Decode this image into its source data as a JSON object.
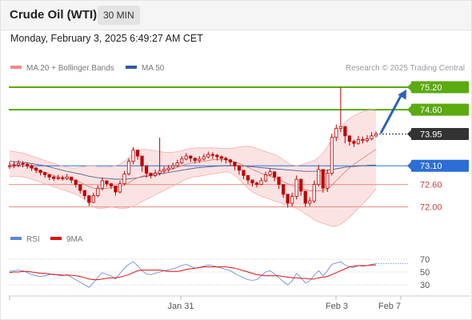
{
  "header": {
    "instrument": "Crude Oil (WTI)",
    "timeframe": "30 MIN",
    "datetime": "Monday, February 3, 2025 6:49:27 AM CET"
  },
  "legend": [
    {
      "label": "MA 20 + Bollinger Bands",
      "color": "#f08a84"
    },
    {
      "label": "MA 50",
      "color": "#2f5a9e"
    }
  ],
  "credit": "Research © 2025 Trading Central",
  "rsi_legend": [
    {
      "label": "RSI",
      "color": "#5b86d6"
    },
    {
      "label": "9MA",
      "color": "#e01010"
    }
  ],
  "colors": {
    "resistance": "#5aaa10",
    "support": "#f08a84",
    "pivot": "#2b6ed6",
    "candle": "#c00000",
    "current": "#333333",
    "arrow": "#2b62b8"
  },
  "chart_data": [
    {
      "type": "candlestick",
      "ylim": [
        71.8,
        75.35
      ],
      "x_tick_labels": [
        {
          "label": "Jan 31",
          "pos": 0.43
        },
        {
          "label": "Feb 3",
          "pos": 0.87
        },
        {
          "label": "Feb 7",
          "pos": 1.03
        }
      ],
      "levels": [
        {
          "value": 75.2,
          "label": "75.20",
          "role": "resistance"
        },
        {
          "value": 74.6,
          "label": "74.60",
          "role": "resistance"
        },
        {
          "value": 73.95,
          "label": "73.95",
          "role": "current"
        },
        {
          "value": 73.1,
          "label": "73.10",
          "role": "pivot"
        },
        {
          "value": 72.6,
          "label": "72.60",
          "role": "support"
        },
        {
          "value": 72.0,
          "label": "72.00",
          "role": "support"
        }
      ],
      "forecast_arrow": {
        "from": 73.95,
        "to": 75.2
      },
      "close": [
        73.1,
        73.12,
        73.16,
        73.14,
        73.1,
        73.04,
        72.98,
        72.92,
        72.86,
        72.8,
        72.76,
        72.78,
        72.76,
        72.8,
        72.72,
        72.6,
        72.44,
        72.3,
        72.12,
        72.3,
        72.5,
        72.7,
        72.62,
        72.56,
        72.4,
        72.62,
        72.88,
        73.22,
        73.52,
        73.36,
        73.1,
        72.9,
        72.84,
        72.9,
        72.96,
        73.0,
        73.04,
        73.1,
        73.18,
        73.28,
        73.36,
        73.3,
        73.24,
        73.28,
        73.34,
        73.4,
        73.38,
        73.34,
        73.3,
        73.26,
        73.2,
        73.1,
        72.98,
        72.84,
        72.72,
        72.64,
        72.6,
        72.7,
        72.86,
        72.94,
        72.8,
        72.6,
        72.34,
        72.1,
        72.28,
        72.74,
        72.42,
        72.1,
        72.16,
        72.6,
        73.0,
        72.5,
        72.9,
        73.86,
        74.1,
        74.15,
        73.9,
        73.75,
        73.7,
        73.8,
        73.78,
        73.82,
        73.9,
        73.95
      ],
      "high": [
        73.2,
        73.22,
        73.25,
        73.22,
        73.18,
        73.14,
        73.06,
        73.0,
        72.94,
        72.88,
        72.84,
        72.86,
        72.84,
        72.88,
        72.8,
        72.7,
        72.52,
        72.38,
        72.22,
        72.38,
        72.58,
        72.78,
        72.7,
        72.64,
        72.5,
        72.7,
        72.96,
        73.3,
        73.6,
        73.5,
        73.2,
        72.98,
        72.92,
        73.0,
        73.85,
        73.08,
        73.12,
        73.18,
        73.26,
        73.36,
        73.44,
        73.38,
        73.32,
        73.36,
        73.42,
        73.48,
        73.46,
        73.42,
        73.38,
        73.34,
        73.28,
        73.18,
        73.06,
        72.92,
        72.8,
        72.72,
        72.68,
        72.78,
        72.94,
        73.02,
        72.9,
        72.7,
        72.44,
        72.22,
        72.38,
        72.84,
        72.52,
        72.2,
        72.26,
        72.7,
        73.12,
        72.6,
        73.0,
        73.96,
        74.2,
        75.2,
        74.02,
        73.86,
        73.8,
        73.9,
        73.88,
        73.92,
        74.0,
        74.02
      ],
      "low": [
        73.02,
        73.04,
        73.06,
        73.06,
        73.02,
        72.96,
        72.9,
        72.84,
        72.78,
        72.72,
        72.7,
        72.72,
        72.7,
        72.72,
        72.64,
        72.52,
        72.36,
        72.2,
        72.02,
        72.1,
        72.26,
        72.44,
        72.54,
        72.48,
        72.3,
        72.36,
        72.58,
        72.84,
        73.14,
        73.26,
        72.94,
        72.78,
        72.76,
        72.8,
        72.84,
        72.9,
        72.94,
        73.0,
        73.06,
        73.14,
        73.24,
        73.2,
        73.16,
        73.18,
        73.24,
        73.3,
        73.28,
        73.24,
        73.2,
        73.16,
        73.1,
        72.98,
        72.86,
        72.74,
        72.62,
        72.54,
        72.52,
        72.58,
        72.66,
        72.82,
        72.68,
        72.48,
        72.24,
        71.98,
        72.0,
        72.2,
        72.3,
        72.0,
        72.02,
        72.1,
        72.54,
        72.38,
        72.4,
        72.84,
        73.76,
        74.0,
        73.7,
        73.64,
        73.6,
        73.66,
        73.7,
        73.72,
        73.78,
        73.86
      ],
      "ma20": [
        73.14,
        73.14,
        73.12,
        73.1,
        73.08,
        73.04,
        73.0,
        72.96,
        72.92,
        72.88,
        72.84,
        72.8,
        72.78,
        72.76,
        72.73,
        72.7,
        72.66,
        72.6,
        72.54,
        72.5,
        72.48,
        72.48,
        72.5,
        72.52,
        72.52,
        72.54,
        72.58,
        72.64,
        72.72,
        72.78,
        72.82,
        72.86,
        72.88,
        72.9,
        72.93,
        72.96,
        72.99,
        73.02,
        73.06,
        73.1,
        73.14,
        73.17,
        73.19,
        73.2,
        73.22,
        73.24,
        73.26,
        73.27,
        73.27,
        73.26,
        73.24,
        73.2,
        73.16,
        73.11,
        73.06,
        73.0,
        72.95,
        72.9,
        72.86,
        72.82,
        72.78,
        72.73,
        72.68,
        72.62,
        72.57,
        72.54,
        72.5,
        72.46,
        72.43,
        72.42,
        72.43,
        72.44,
        72.48,
        72.58,
        72.7,
        72.82,
        72.94,
        73.04,
        73.14,
        73.22,
        73.3,
        73.38,
        73.46,
        73.54
      ],
      "bb_upper": [
        73.5,
        73.48,
        73.46,
        73.44,
        73.4,
        73.36,
        73.32,
        73.28,
        73.24,
        73.2,
        73.16,
        73.12,
        73.09,
        73.06,
        73.04,
        73.04,
        73.06,
        73.08,
        73.1,
        73.1,
        73.08,
        73.06,
        73.06,
        73.08,
        73.1,
        73.14,
        73.22,
        73.32,
        73.42,
        73.5,
        73.54,
        73.54,
        73.52,
        73.5,
        73.48,
        73.46,
        73.46,
        73.46,
        73.48,
        73.5,
        73.54,
        73.56,
        73.57,
        73.58,
        73.58,
        73.58,
        73.58,
        73.58,
        73.56,
        73.56,
        73.56,
        73.58,
        73.6,
        73.62,
        73.62,
        73.6,
        73.56,
        73.52,
        73.48,
        73.44,
        73.4,
        73.34,
        73.26,
        73.18,
        73.12,
        73.1,
        73.12,
        73.16,
        73.2,
        73.24,
        73.32,
        73.44,
        73.6,
        73.8,
        73.98,
        74.12,
        74.26,
        74.36,
        74.44,
        74.5,
        74.55,
        74.58,
        74.6,
        74.62
      ],
      "bb_lower": [
        72.8,
        72.82,
        72.82,
        72.8,
        72.78,
        72.74,
        72.7,
        72.66,
        72.62,
        72.58,
        72.54,
        72.5,
        72.46,
        72.42,
        72.38,
        72.34,
        72.28,
        72.2,
        72.1,
        72.0,
        71.96,
        71.96,
        71.98,
        72.0,
        71.98,
        71.96,
        71.96,
        71.98,
        72.02,
        72.08,
        72.14,
        72.2,
        72.26,
        72.32,
        72.38,
        72.44,
        72.5,
        72.56,
        72.62,
        72.68,
        72.74,
        72.78,
        72.81,
        72.82,
        72.84,
        72.86,
        72.88,
        72.9,
        72.92,
        72.94,
        72.92,
        72.84,
        72.74,
        72.62,
        72.5,
        72.4,
        72.34,
        72.28,
        72.24,
        72.2,
        72.16,
        72.12,
        72.08,
        72.04,
        72.0,
        71.96,
        71.9,
        71.82,
        71.74,
        71.66,
        71.6,
        71.56,
        71.52,
        71.48,
        71.48,
        71.54,
        71.62,
        71.72,
        71.84,
        71.96,
        72.08,
        72.2,
        72.34,
        72.48
      ],
      "ma50": [
        73.22,
        73.21,
        73.2,
        73.19,
        73.18,
        73.16,
        73.14,
        73.12,
        73.1,
        73.07,
        73.04,
        73.01,
        72.98,
        72.95,
        72.93,
        72.9,
        72.88,
        72.85,
        72.82,
        72.8,
        72.78,
        72.77,
        72.76,
        72.75,
        72.74,
        72.74,
        72.74,
        72.75,
        72.76,
        72.78,
        72.8,
        72.82,
        72.84,
        72.86,
        72.88,
        72.9,
        72.92,
        72.94,
        72.96,
        72.98,
        73.0,
        73.02,
        73.04,
        73.05,
        73.06,
        73.07,
        73.08,
        73.09,
        73.1,
        73.1,
        73.1,
        73.1,
        73.1,
        73.09,
        73.08,
        73.07,
        73.06,
        73.05,
        73.04,
        73.03,
        73.02,
        73.01,
        73.0,
        72.99,
        72.98,
        72.97,
        72.96,
        72.95,
        72.95,
        72.95,
        72.96,
        72.97,
        72.98,
        73.0,
        73.02,
        73.04,
        73.06,
        73.07,
        73.08,
        73.09,
        73.1,
        73.11,
        73.12,
        73.12
      ]
    },
    {
      "type": "line",
      "name": "RSI",
      "ylim": [
        20,
        80
      ],
      "y_ticks": [
        70,
        50,
        30
      ],
      "series": [
        {
          "name": "RSI",
          "values": [
            51,
            52,
            53,
            52,
            49,
            46,
            44,
            43,
            44,
            46,
            47,
            45,
            44,
            46,
            42,
            38,
            34,
            30,
            26,
            33,
            42,
            49,
            46,
            44,
            39,
            48,
            56,
            62,
            66,
            60,
            52,
            47,
            46,
            48,
            50,
            52,
            53,
            55,
            57,
            60,
            62,
            59,
            56,
            57,
            59,
            61,
            60,
            58,
            56,
            54,
            52,
            48,
            44,
            41,
            38,
            37,
            38,
            44,
            50,
            52,
            47,
            41,
            35,
            30,
            36,
            48,
            41,
            33,
            36,
            45,
            52,
            44,
            52,
            62,
            64,
            66,
            61,
            58,
            57,
            60,
            59,
            60,
            62,
            63
          ]
        },
        {
          "name": "9MA",
          "values": [
            49,
            50,
            50,
            51,
            51,
            50,
            49,
            48,
            48,
            47,
            46,
            46,
            45,
            45,
            45,
            44,
            43,
            41,
            39,
            38,
            38,
            39,
            40,
            41,
            41,
            42,
            44,
            46,
            49,
            52,
            53,
            53,
            53,
            53,
            53,
            52,
            51,
            51,
            51,
            52,
            54,
            55,
            56,
            57,
            58,
            58,
            58,
            58,
            58,
            58,
            57,
            56,
            54,
            52,
            50,
            48,
            46,
            45,
            44,
            44,
            44,
            44,
            43,
            42,
            41,
            41,
            40,
            40,
            39,
            39,
            41,
            42,
            43,
            46,
            49,
            52,
            55,
            58,
            59,
            60,
            60,
            60,
            61,
            61
          ]
        }
      ]
    }
  ]
}
